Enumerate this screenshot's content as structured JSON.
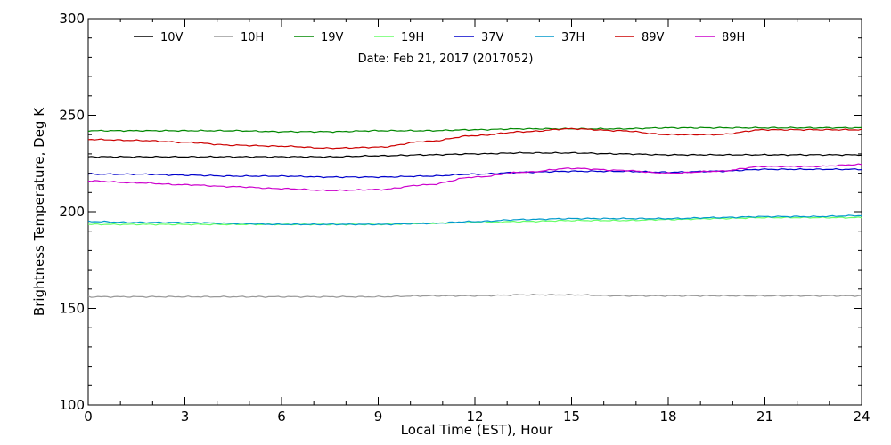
{
  "chart_data": {
    "type": "line",
    "subtitle": "Date: Feb 21, 2017 (2017052)",
    "xlabel": "Local Time (EST), Hour",
    "ylabel": "Brightness Temperature, Deg K",
    "xlim": [
      0,
      24
    ],
    "ylim": [
      100,
      300
    ],
    "xticks": [
      0,
      3,
      6,
      9,
      12,
      15,
      18,
      21,
      24
    ],
    "yticks": [
      100,
      150,
      200,
      250,
      300
    ],
    "grid": false,
    "legend_position": "top",
    "x": [
      0,
      1.5,
      3,
      4.5,
      6,
      7.5,
      9,
      10.5,
      12,
      13.5,
      15,
      16.5,
      18,
      19.5,
      21,
      22.5,
      24
    ],
    "series": [
      {
        "name": "10V",
        "color": "#000000",
        "values": [
          228.5,
          228.5,
          228.5,
          228.5,
          228.5,
          228.5,
          229,
          229.5,
          230,
          230.5,
          230.5,
          230,
          229.5,
          229.5,
          229.5,
          229.5,
          229.5
        ]
      },
      {
        "name": "10H",
        "color": "#999999",
        "values": [
          156,
          156,
          156,
          156,
          156,
          156,
          156,
          156.5,
          156.5,
          157,
          157,
          156.5,
          156.5,
          156.5,
          156.5,
          156.5,
          156.5
        ]
      },
      {
        "name": "19V",
        "color": "#008800",
        "values": [
          242,
          242,
          242,
          242,
          241.5,
          241.5,
          242,
          242,
          242.5,
          243,
          243,
          243,
          243.5,
          243.5,
          243.5,
          243.5,
          243.5
        ]
      },
      {
        "name": "19H",
        "color": "#66ff66",
        "values": [
          193.5,
          193.5,
          193.5,
          193.5,
          193.5,
          193.5,
          193.5,
          194,
          194.5,
          195,
          195.5,
          195.5,
          196,
          196.5,
          197,
          197,
          197
        ]
      },
      {
        "name": "37V",
        "color": "#0000cc",
        "values": [
          219.5,
          219.5,
          219,
          218.5,
          218.5,
          218,
          218,
          218.5,
          219.5,
          220.5,
          221,
          221,
          220.5,
          221,
          222,
          222,
          222
        ]
      },
      {
        "name": "37H",
        "color": "#0099cc",
        "values": [
          195,
          194.5,
          194.5,
          194,
          193.5,
          193.5,
          193.5,
          194,
          195,
          196,
          196.5,
          196.5,
          196.5,
          197,
          197.5,
          197.5,
          198
        ]
      },
      {
        "name": "89V",
        "color": "#cc0000",
        "values": [
          237.5,
          237,
          236,
          234.5,
          234,
          233,
          233.5,
          236.5,
          239.5,
          241.5,
          243,
          242,
          240,
          240,
          242.5,
          242.5,
          242.5
        ]
      },
      {
        "name": "89H",
        "color": "#cc00cc",
        "values": [
          216,
          215,
          214,
          213,
          212,
          211,
          211.5,
          214,
          218,
          220.5,
          222.5,
          221.5,
          220,
          221,
          223.5,
          223.5,
          224.5
        ]
      }
    ]
  }
}
